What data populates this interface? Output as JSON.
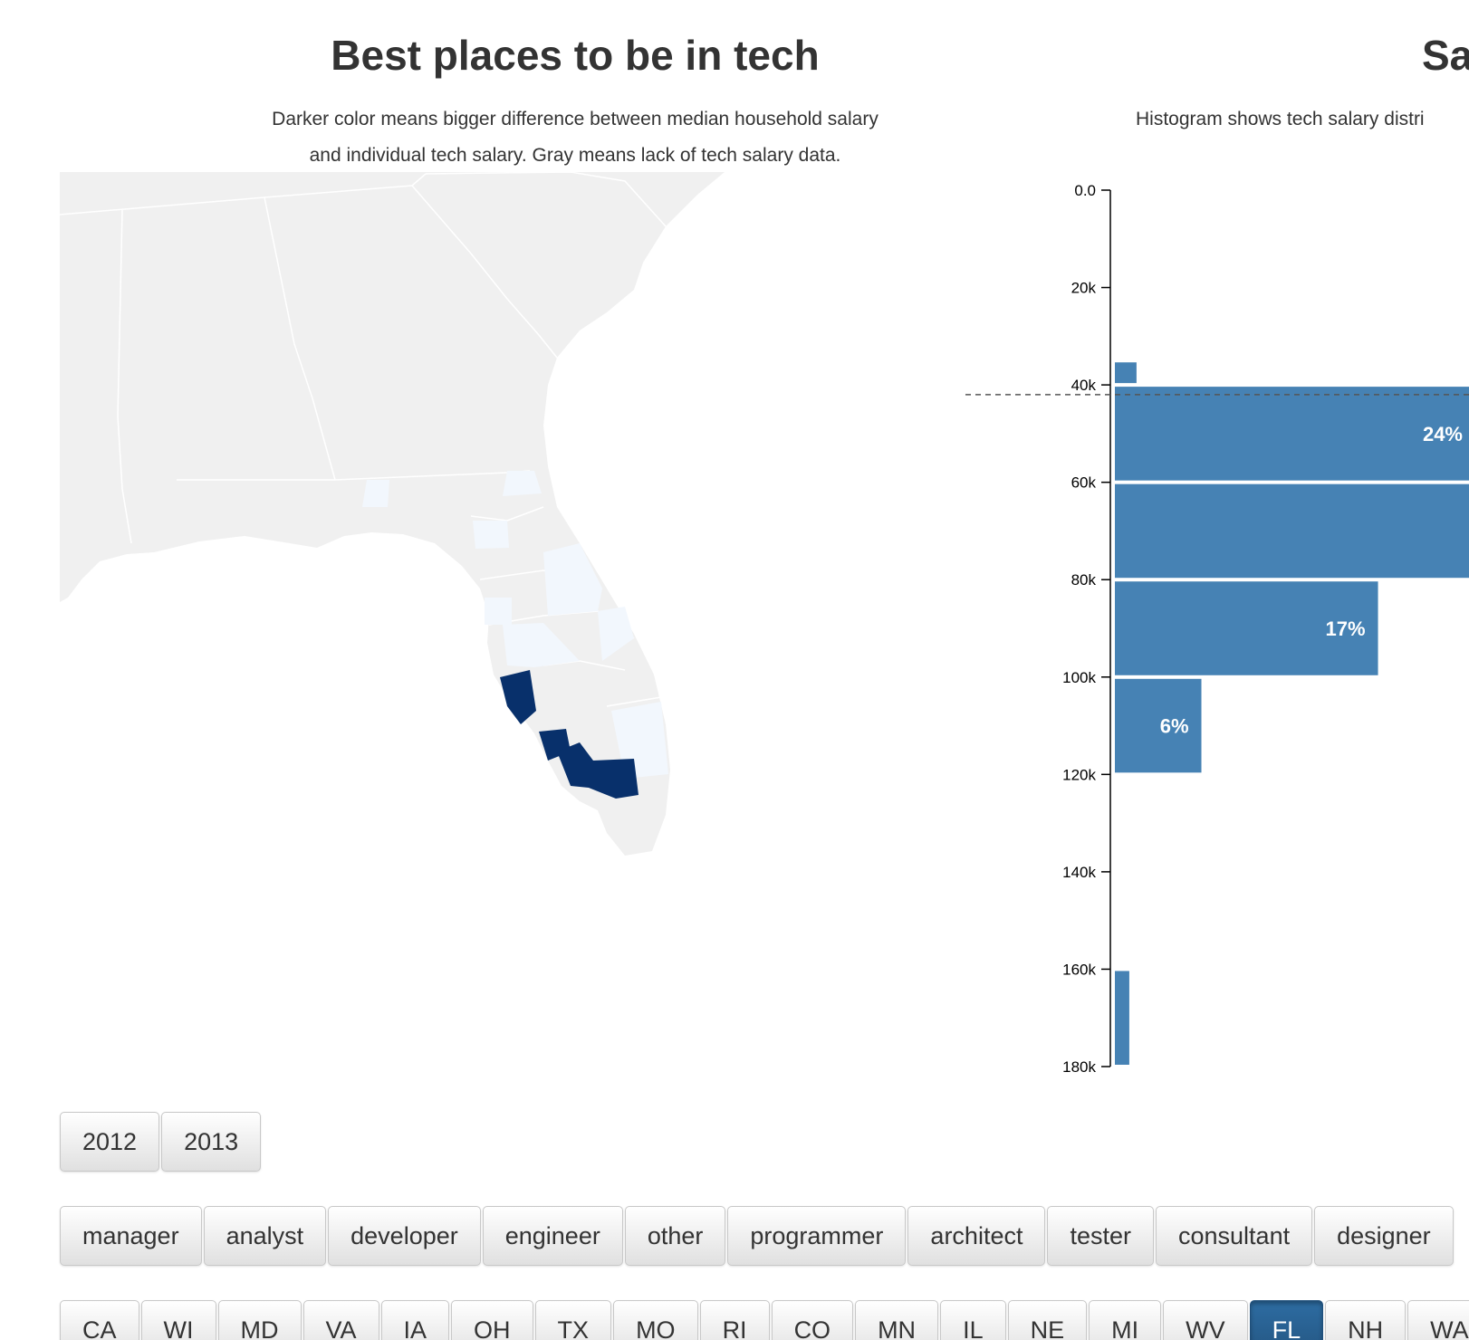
{
  "map": {
    "title": "Best places to be in tech",
    "description_line1": "Darker color means bigger difference between median household salary",
    "description_line2": "and individual tech salary. Gray means lack of tech salary data."
  },
  "histogram": {
    "title": "Sa",
    "description": "Histogram shows tech salary distri"
  },
  "colors": {
    "map_no_data": "#f0f0f0",
    "map_light": "#f2f7fd",
    "map_dark": "#08306b",
    "bar": "#4682b4",
    "active_button": "#2d6ca2"
  },
  "chart_data": {
    "type": "bar",
    "orientation": "horizontal",
    "title": "Sa",
    "subtitle": "Histogram shows tech salary distri",
    "ylim": [
      0,
      180000
    ],
    "tick_labels": [
      "0.0",
      "20k",
      "40k",
      "60k",
      "80k",
      "100k",
      "120k",
      "140k",
      "160k",
      "180k"
    ],
    "median_household_line": 42000,
    "bins": [
      {
        "start": 35000,
        "end": 40000,
        "relative": 0.06,
        "label": ""
      },
      {
        "start": 40000,
        "end": 60000,
        "relative": 1.0,
        "label": "24%"
      },
      {
        "start": 60000,
        "end": 80000,
        "relative": 1.1,
        "label": ""
      },
      {
        "start": 80000,
        "end": 100000,
        "relative": 0.73,
        "label": "17%"
      },
      {
        "start": 100000,
        "end": 120000,
        "relative": 0.24,
        "label": "6%"
      },
      {
        "start": 160000,
        "end": 180000,
        "relative": 0.04,
        "label": ""
      }
    ]
  },
  "filters": {
    "years": [
      {
        "label": "2012",
        "active": false
      },
      {
        "label": "2013",
        "active": false
      }
    ],
    "jobs": [
      {
        "label": "manager",
        "active": false
      },
      {
        "label": "analyst",
        "active": false
      },
      {
        "label": "developer",
        "active": false
      },
      {
        "label": "engineer",
        "active": false
      },
      {
        "label": "other",
        "active": false
      },
      {
        "label": "programmer",
        "active": false
      },
      {
        "label": "architect",
        "active": false
      },
      {
        "label": "tester",
        "active": false
      },
      {
        "label": "consultant",
        "active": false
      },
      {
        "label": "designer",
        "active": false
      }
    ],
    "states": [
      {
        "label": "CA",
        "active": false
      },
      {
        "label": "WI",
        "active": false
      },
      {
        "label": "MD",
        "active": false
      },
      {
        "label": "VA",
        "active": false
      },
      {
        "label": "IA",
        "active": false
      },
      {
        "label": "OH",
        "active": false
      },
      {
        "label": "TX",
        "active": false
      },
      {
        "label": "MO",
        "active": false
      },
      {
        "label": "RI",
        "active": false
      },
      {
        "label": "CO",
        "active": false
      },
      {
        "label": "MN",
        "active": false
      },
      {
        "label": "IL",
        "active": false
      },
      {
        "label": "NE",
        "active": false
      },
      {
        "label": "MI",
        "active": false
      },
      {
        "label": "WV",
        "active": false
      },
      {
        "label": "FL",
        "active": true
      },
      {
        "label": "NH",
        "active": false
      },
      {
        "label": "WA",
        "active": false
      }
    ]
  }
}
